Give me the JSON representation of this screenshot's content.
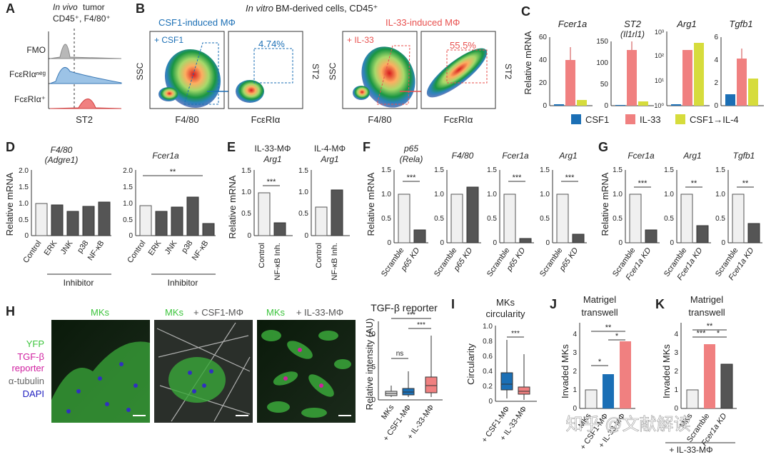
{
  "panels": {
    "A": {
      "label": "A",
      "title_italic": "In vivo",
      "title_rest": " tumor",
      "title2": "CD45⁺, F4/80⁺",
      "rows": [
        "FMO",
        "FcεRIαⁿᵉᵍ",
        "FcεRIα⁺"
      ],
      "xlabel": "ST2"
    },
    "B": {
      "label": "B",
      "title_italic": "In vitro",
      "title_rest": " BM-derived cells, CD45⁺",
      "left_title": "CSF1-induced MΦ",
      "right_title": "IL-33-induced MΦ",
      "left_tag": "+ CSF1",
      "right_tag": "+ IL-33",
      "left_pct": "4.74%",
      "right_pct": "55.5%",
      "ylabel_ssc": "SSC",
      "ylabel_st2": "ST2",
      "xlabel_f480": "F4/80",
      "xlabel_fce": "FcεRIα"
    },
    "C": {
      "label": "C",
      "ylabel": "Relative mRNA",
      "legend": [
        "CSF1",
        "IL-33",
        "CSF1→IL-4"
      ],
      "genes": [
        "Fcer1a",
        "ST2",
        "Arg1",
        "Tgfb1"
      ],
      "st2_alias": "(Il1rl1)",
      "colors": {
        "csf1": "#1b6fb5",
        "il33": "#f08080",
        "il4": "#d6dc3c"
      }
    },
    "D": {
      "label": "D",
      "ylabel": "Relative mRNA",
      "gene1": "F4/80",
      "gene1_alias": "(Adgre1)",
      "gene2": "Fcer1a",
      "xcats": [
        "Control",
        "ERK",
        "JNK",
        "p38",
        "NF-κB"
      ],
      "group_label": "Inhibitor",
      "sig": "**"
    },
    "E": {
      "label": "E",
      "ylabel": "Relative mRNA",
      "t1": "IL-33-MΦ",
      "t2": "IL-4-MΦ",
      "gene": "Arg1",
      "xcats": [
        "Control",
        "NF-κB Inh."
      ],
      "sig": "***"
    },
    "F": {
      "label": "F",
      "ylabel": "Relative mRNA",
      "genes": [
        "p65",
        "F4/80",
        "Fcer1a",
        "Arg1"
      ],
      "p65_alias": "(Rela)",
      "xcats": [
        "Scramble",
        "p65 KD"
      ],
      "sig": "***"
    },
    "G": {
      "label": "G",
      "ylabel": "Relative mRNA",
      "genes": [
        "Fcer1a",
        "Arg1",
        "Tgfb1"
      ],
      "xcats": [
        "Scramble",
        "Fcer1a KD"
      ],
      "sigs": [
        "***",
        "**",
        "**"
      ]
    },
    "H": {
      "label": "H",
      "legend": [
        "YFP",
        "TGF-β",
        "reporter",
        "α-tubulin",
        "DAPI"
      ],
      "img_titles": [
        "MKs",
        "MKs",
        "+ CSF1-MΦ",
        "MKs",
        "+ IL-33-MΦ"
      ],
      "plot_title": "TGF-β reporter",
      "ylabel": "Relative intensity (AU)",
      "xcats": [
        "MKs",
        "+ CSF1-MΦ",
        "+ IL-33-MΦ"
      ],
      "sigs": [
        "***",
        "***",
        "ns"
      ]
    },
    "I": {
      "label": "I",
      "title1": "MKs",
      "title2": "circularity",
      "ylabel": "Circularity",
      "xcats": [
        "+ CSF1-MΦ",
        "+ IL-33-MΦ"
      ],
      "sig": "***"
    },
    "J": {
      "label": "J",
      "title1": "Matrigel",
      "title2": "transwell",
      "ylabel": "Invaded MKs",
      "xcats": [
        "MKs",
        "+ CSF1-MΦ",
        "+ IL-33-MΦ"
      ],
      "sigs": [
        "**",
        "*",
        "*"
      ]
    },
    "K": {
      "label": "K",
      "title1": "Matrigel",
      "title2": "transwell",
      "ylabel": "Invaded MKs",
      "xcats": [
        "MKs",
        "Scramble",
        "Fcer1a KD"
      ],
      "sigs": [
        "**",
        "***",
        "*"
      ],
      "group_label": "+ IL-33-MΦ"
    }
  },
  "watermark": "知乎 @文献解读"
}
